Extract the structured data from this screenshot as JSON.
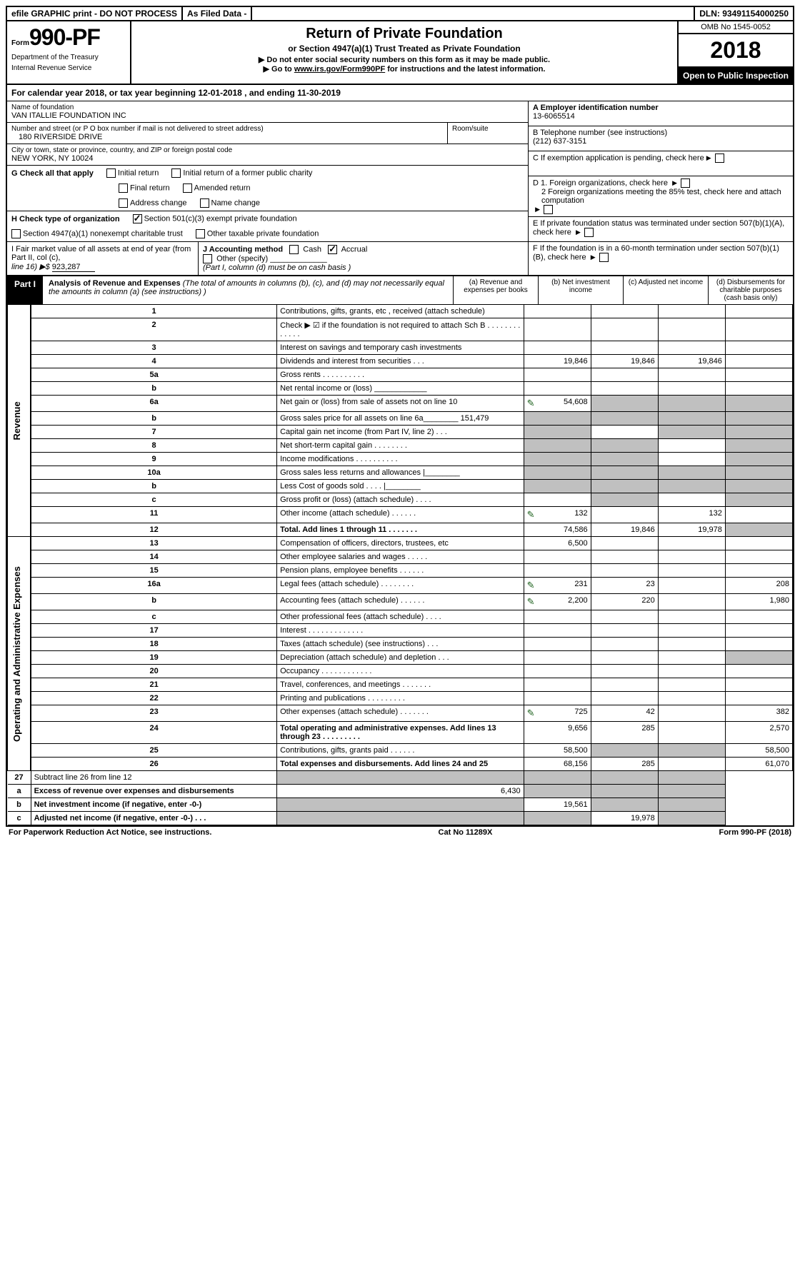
{
  "topbar": {
    "efile": "efile GRAPHIC print - DO NOT PROCESS",
    "filed": "As Filed Data -",
    "dln_label": "DLN:",
    "dln": "93491154000250"
  },
  "header": {
    "form_prefix": "Form",
    "form_num": "990-PF",
    "dept1": "Department of the Treasury",
    "dept2": "Internal Revenue Service",
    "title": "Return of Private Foundation",
    "subtitle": "or Section 4947(a)(1) Trust Treated as Private Foundation",
    "instr1": "▶ Do not enter social security numbers on this form as it may be made public.",
    "instr2_pre": "▶ Go to ",
    "instr2_link": "www.irs.gov/Form990PF",
    "instr2_post": " for instructions and the latest information.",
    "omb": "OMB No 1545-0052",
    "year": "2018",
    "open_pub": "Open to Public Inspection"
  },
  "calyear": "For calendar year 2018, or tax year beginning 12-01-2018                    , and ending 11-30-2019",
  "foundation": {
    "name_label": "Name of foundation",
    "name": "VAN ITALLIE FOUNDATION INC",
    "addr_label": "Number and street (or P O  box number if mail is not delivered to street address)",
    "addr": "180 RIVERSIDE DRIVE",
    "room_label": "Room/suite",
    "city_label": "City or town, state or province, country, and ZIP or foreign postal code",
    "city": "NEW YORK, NY  10024"
  },
  "right": {
    "A_label": "A Employer identification number",
    "A": "13-6065514",
    "B_label": "B Telephone number (see instructions)",
    "B": "(212) 637-3151",
    "C": "C If exemption application is pending, check here",
    "D1": "D 1. Foreign organizations, check here",
    "D2": "2 Foreign organizations meeting the 85% test, check here and attach computation",
    "E": "E  If private foundation status was terminated under section 507(b)(1)(A), check here",
    "F": "F  If the foundation is in a 60-month termination under section 507(b)(1)(B), check here"
  },
  "G": {
    "label": "G Check all that apply",
    "o1": "Initial return",
    "o2": "Initial return of a former public charity",
    "o3": "Final return",
    "o4": "Amended return",
    "o5": "Address change",
    "o6": "Name change"
  },
  "H": {
    "label": "H Check type of organization",
    "o1": "Section 501(c)(3) exempt private foundation",
    "o2": "Section 4947(a)(1) nonexempt charitable trust",
    "o3": "Other taxable private foundation"
  },
  "I": {
    "text1": "I Fair market value of all assets at end of year (from Part II, col  (c),",
    "text2": "line 16) ▶$",
    "val": "923,287"
  },
  "J": {
    "label": "J Accounting method",
    "o1": "Cash",
    "o2": "Accrual",
    "o3": "Other (specify)",
    "note": "(Part I, column (d) must be on cash basis )"
  },
  "part1": {
    "label": "Part I",
    "title": "Analysis of Revenue and Expenses",
    "note": " (The total of amounts in columns (b), (c), and (d) may not necessarily equal the amounts in column (a) (see instructions) )",
    "col_a": "(a)   Revenue and expenses per books",
    "col_b": "(b)  Net investment income",
    "col_c": "(c)  Adjusted net income",
    "col_d": "(d)  Disbursements for charitable purposes (cash basis only)"
  },
  "revenue_label": "Revenue",
  "expenses_label": "Operating and Administrative Expenses",
  "rows": [
    {
      "n": "1",
      "d": "Contributions, gifts, grants, etc , received (attach schedule)"
    },
    {
      "n": "2",
      "d": "Check ▶ ☑ if the foundation is not required to attach Sch B          .   .   .   .   .   .   .   .   .   .   .   .   ."
    },
    {
      "n": "3",
      "d": "Interest on savings and temporary cash investments"
    },
    {
      "n": "4",
      "d": "Dividends and interest from securities       .    .    .",
      "a": "19,846",
      "b": "19,846",
      "c": "19,846"
    },
    {
      "n": "5a",
      "d": "Gross rents        .    .    .    .    .    .    .    .    .    ."
    },
    {
      "n": "b",
      "d": "Net rental income or (loss)  ____________"
    },
    {
      "n": "6a",
      "d": "Net gain or (loss) from sale of assets not on line 10",
      "a": "54,608",
      "pencil_a": true,
      "shade_bcd": true
    },
    {
      "n": "b",
      "d": "Gross sales price for all assets on line 6a________ 151,479",
      "shade_all": true
    },
    {
      "n": "7",
      "d": "Capital gain net income (from Part IV, line 2)    .   .   .",
      "shade_acd": true
    },
    {
      "n": "8",
      "d": "Net short-term capital gain   .    .    .    .    .    .    .    .",
      "shade_abd": true
    },
    {
      "n": "9",
      "d": "Income modifications  .    .    .    .    .    .    .    .    .    .",
      "shade_abd": true
    },
    {
      "n": "10a",
      "d": "Gross sales less returns and allowances |________",
      "shade_all": true
    },
    {
      "n": "b",
      "d": "Less  Cost of goods sold     .    .    .    .   |________",
      "shade_all": true
    },
    {
      "n": "c",
      "d": "Gross profit or (loss) (attach schedule)      .    .    .    .",
      "shade_bd": true
    },
    {
      "n": "11",
      "d": "Other income (attach schedule)     .    .    .    .    .    .",
      "a": "132",
      "c": "132",
      "pencil_a": true
    },
    {
      "n": "12",
      "d": "Total. Add lines 1 through 11    .    .    .    .    .    .    .",
      "a": "74,586",
      "b": "19,846",
      "c": "19,978",
      "bold": true,
      "shade_d": true
    }
  ],
  "exp_rows": [
    {
      "n": "13",
      "d": "Compensation of officers, directors, trustees, etc",
      "a": "6,500"
    },
    {
      "n": "14",
      "d": "Other employee salaries and wages     .    .    .    .    ."
    },
    {
      "n": "15",
      "d": "Pension plans, employee benefits   .    .    .    .    .    ."
    },
    {
      "n": "16a",
      "d": "Legal fees (attach schedule) .    .    .    .    .    .    .    .",
      "a": "231",
      "b": "23",
      "d_": "208",
      "pencil_a": true
    },
    {
      "n": "b",
      "d": "Accounting fees (attach schedule) .    .    .    .    .    .",
      "a": "2,200",
      "b": "220",
      "d_": "1,980",
      "pencil_a": true
    },
    {
      "n": "c",
      "d": "Other professional fees (attach schedule)    .    .    .    ."
    },
    {
      "n": "17",
      "d": "Interest   .    .    .    .    .    .    .    .    .    .    .    .    ."
    },
    {
      "n": "18",
      "d": "Taxes (attach schedule) (see instructions)      .    .    ."
    },
    {
      "n": "19",
      "d": "Depreciation (attach schedule) and depletion    .    .    .",
      "shade_d": true
    },
    {
      "n": "20",
      "d": "Occupancy    .    .    .    .    .    .    .    .    .    .    .    ."
    },
    {
      "n": "21",
      "d": "Travel, conferences, and meetings .    .    .    .    .    .    ."
    },
    {
      "n": "22",
      "d": "Printing and publications .    .    .    .    .    .    .    .    ."
    },
    {
      "n": "23",
      "d": "Other expenses (attach schedule) .    .    .    .    .    .    .",
      "a": "725",
      "b": "42",
      "d_": "382",
      "pencil_a": true
    },
    {
      "n": "24",
      "d": "Total operating and administrative expenses. Add lines 13 through 23    .    .    .    .    .    .    .    .    .",
      "a": "9,656",
      "b": "285",
      "d_": "2,570",
      "bold": true
    },
    {
      "n": "25",
      "d": "Contributions, gifts, grants paid       .    .    .    .    .    .",
      "a": "58,500",
      "d_": "58,500",
      "shade_bc": true
    },
    {
      "n": "26",
      "d": "Total expenses and disbursements. Add lines 24 and 25",
      "a": "68,156",
      "b": "285",
      "d_": "61,070",
      "bold": true
    }
  ],
  "bottom_rows": [
    {
      "n": "27",
      "d": "Subtract line 26 from line 12",
      "shade_all": true
    },
    {
      "n": "a",
      "d": "Excess of revenue over expenses and disbursements",
      "a": "6,430",
      "bold": true,
      "shade_bcd": true
    },
    {
      "n": "b",
      "d": "Net investment income (if negative, enter -0-)",
      "b": "19,561",
      "bold": true,
      "shade_acd": true
    },
    {
      "n": "c",
      "d": "Adjusted net income (if negative, enter -0-)    .    .    .",
      "c": "19,978",
      "bold": true,
      "shade_abd": true
    }
  ],
  "footer": {
    "left": "For Paperwork Reduction Act Notice, see instructions.",
    "mid": "Cat  No  11289X",
    "right": "Form 990-PF (2018)"
  }
}
